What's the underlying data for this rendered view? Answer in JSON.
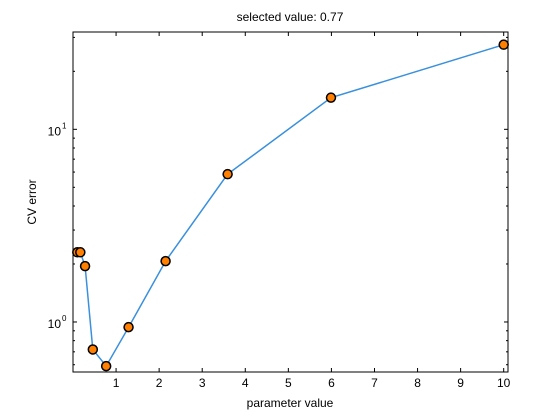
{
  "chart_data": {
    "type": "line",
    "title": "selected value: 0.77",
    "xlabel": "parameter value",
    "ylabel": "CV error",
    "xlim": [
      0,
      10.1
    ],
    "ylim": [
      0.55,
      32
    ],
    "yscale": "log",
    "x_ticks": [
      1,
      2,
      3,
      4,
      5,
      6,
      7,
      8,
      9,
      10
    ],
    "y_major_ticks": [
      1,
      10
    ],
    "y_major_tick_labels": [
      {
        "base": "10",
        "exp": "0"
      },
      {
        "base": "10",
        "exp": "1"
      }
    ],
    "grid": false,
    "legend": "none",
    "series": [
      {
        "x": [
          0.1,
          0.17,
          0.28,
          0.46,
          0.77,
          1.29,
          2.15,
          3.59,
          5.99,
          10
        ],
        "y": [
          2.3,
          2.3,
          1.95,
          0.72,
          0.59,
          0.94,
          2.07,
          5.85,
          14.6,
          27.5
        ]
      }
    ],
    "colors": {
      "line": "#3a90dc",
      "marker_fill": "#ff7f00",
      "marker_edge": "#000000",
      "axes": "#000000"
    }
  }
}
